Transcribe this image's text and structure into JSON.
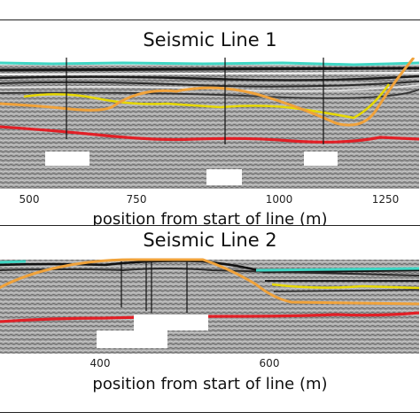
{
  "figure": {
    "panels": [
      {
        "title": "Seismic Line 1",
        "xlabel": "position from start of line (m)",
        "ticks": [
          {
            "label": "500",
            "value": 500
          },
          {
            "label": "750",
            "value": 750
          },
          {
            "label": "1000",
            "value": 1000
          },
          {
            "label": "1250",
            "value": 1250
          }
        ]
      },
      {
        "title": "Seismic Line 2",
        "xlabel": "position from start of line (m)",
        "ticks": [
          {
            "label": "400",
            "value": 400
          },
          {
            "label": "600",
            "value": 600
          }
        ]
      }
    ],
    "colors": {
      "cyan_horizon": "#3fd6c4",
      "yellow_horizon": "#e6d800",
      "orange_horizon": "#f0a23a",
      "red_horizon": "#e21f26",
      "background_noise": "#9a9a9a"
    }
  }
}
